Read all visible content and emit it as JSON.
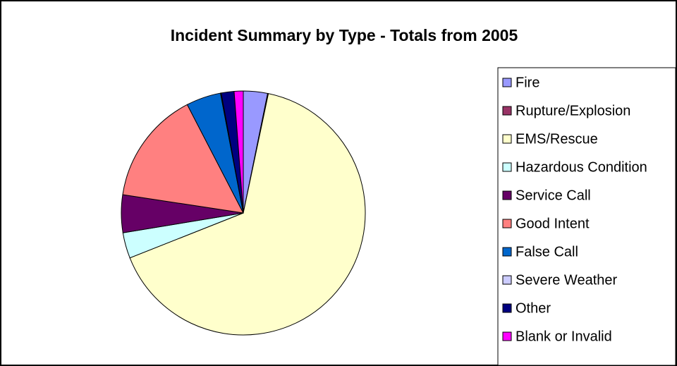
{
  "chart_data": {
    "type": "pie",
    "title": "Incident Summary by Type - Totals from 2005",
    "categories": [
      "Fire",
      "Rupture/Explosion",
      "EMS/Rescue",
      "Hazardous Condition",
      "Service Call",
      "Good Intent",
      "False Call",
      "Severe Weather",
      "Other",
      "Blank or Invalid"
    ],
    "values": [
      3.2,
      0.1,
      65.7,
      3.4,
      5,
      15,
      4.6,
      0.1,
      1.7,
      1.2
    ],
    "colors": [
      "#9999ff",
      "#993366",
      "#ffffcc",
      "#ccffff",
      "#660066",
      "#ff8080",
      "#0066cc",
      "#ccccff",
      "#000080",
      "#ff00ff"
    ],
    "legend": "right"
  }
}
